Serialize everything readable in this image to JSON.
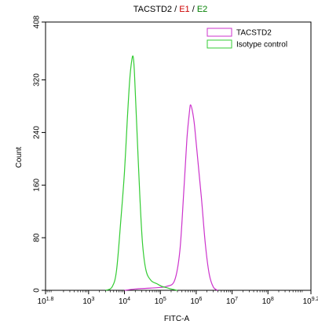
{
  "chart_data": {
    "type": "line",
    "title_parts": [
      {
        "text": "TACSTD2",
        "color": "#000000"
      },
      {
        "text": " / ",
        "color": "#000000"
      },
      {
        "text": "E1",
        "color": "#cc0000"
      },
      {
        "text": " / ",
        "color": "#000000"
      },
      {
        "text": "E2",
        "color": "#008000"
      }
    ],
    "xlabel": "FITC-A",
    "ylabel": "Count",
    "x_scale": "log",
    "xlim": [
      63,
      1580000000
    ],
    "ylim": [
      0,
      408
    ],
    "x_ticks": [
      {
        "value": 63,
        "base": "10",
        "exp": "1.8"
      },
      {
        "value": 1000,
        "base": "10",
        "exp": "3"
      },
      {
        "value": 10000,
        "base": "10",
        "exp": "4"
      },
      {
        "value": 100000,
        "base": "10",
        "exp": "5"
      },
      {
        "value": 1000000,
        "base": "10",
        "exp": "6"
      },
      {
        "value": 10000000,
        "base": "10",
        "exp": "7"
      },
      {
        "value": 100000000,
        "base": "10",
        "exp": "8"
      },
      {
        "value": 1580000000,
        "base": "10",
        "exp": "9.2"
      }
    ],
    "y_ticks": [
      0,
      80,
      160,
      240,
      320,
      408
    ],
    "grid": false,
    "legend_position": "top-right",
    "series": [
      {
        "name": "TACSTD2",
        "color": "#cc33cc",
        "points": [
          [
            10000,
            0
          ],
          [
            20000,
            2
          ],
          [
            40000,
            3
          ],
          [
            80000,
            4
          ],
          [
            150000,
            6
          ],
          [
            250000,
            15
          ],
          [
            350000,
            60
          ],
          [
            450000,
            150
          ],
          [
            550000,
            230
          ],
          [
            650000,
            272
          ],
          [
            700000,
            282
          ],
          [
            800000,
            270
          ],
          [
            900000,
            250
          ],
          [
            1100000,
            200
          ],
          [
            1400000,
            140
          ],
          [
            1800000,
            70
          ],
          [
            2300000,
            25
          ],
          [
            3000000,
            5
          ],
          [
            4000000,
            0
          ]
        ]
      },
      {
        "name": "Isotype control",
        "color": "#33cc33",
        "points": [
          [
            3000,
            0
          ],
          [
            4500,
            5
          ],
          [
            6000,
            30
          ],
          [
            8000,
            110
          ],
          [
            10000,
            180
          ],
          [
            12000,
            260
          ],
          [
            14000,
            320
          ],
          [
            16000,
            350
          ],
          [
            17500,
            355
          ],
          [
            19000,
            330
          ],
          [
            22000,
            250
          ],
          [
            27000,
            140
          ],
          [
            32000,
            70
          ],
          [
            40000,
            30
          ],
          [
            55000,
            15
          ],
          [
            80000,
            10
          ],
          [
            110000,
            6
          ],
          [
            150000,
            4
          ],
          [
            200000,
            2
          ],
          [
            300000,
            0
          ]
        ]
      }
    ]
  }
}
